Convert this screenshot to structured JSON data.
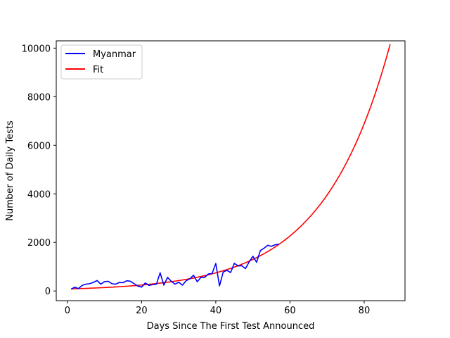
{
  "chart_data": {
    "type": "line",
    "title": "",
    "xlabel": "Days Since The First Test Announced",
    "ylabel": "Number of Daily Tests",
    "xlim": [
      -3,
      91
    ],
    "ylim": [
      -400,
      10300
    ],
    "xticks": [
      0,
      20,
      40,
      60,
      80
    ],
    "yticks": [
      0,
      2000,
      4000,
      6000,
      8000,
      10000
    ],
    "grid": false,
    "legend_position": "top-left",
    "series": [
      {
        "name": "Myanmar",
        "color": "#0000ff",
        "x": [
          1,
          2,
          3,
          4,
          5,
          6,
          7,
          8,
          9,
          10,
          11,
          12,
          13,
          14,
          15,
          16,
          17,
          18,
          19,
          20,
          21,
          22,
          23,
          24,
          25,
          26,
          27,
          28,
          29,
          30,
          31,
          32,
          33,
          34,
          35,
          36,
          37,
          38,
          39,
          40,
          41,
          42,
          43,
          44,
          45,
          46,
          47,
          48,
          49,
          50,
          51,
          52,
          53,
          54,
          55,
          56,
          57
        ],
        "y": [
          80,
          150,
          100,
          230,
          280,
          300,
          350,
          430,
          280,
          380,
          400,
          300,
          280,
          350,
          340,
          420,
          400,
          300,
          200,
          160,
          330,
          230,
          260,
          280,
          750,
          240,
          560,
          400,
          280,
          360,
          240,
          420,
          500,
          650,
          380,
          560,
          560,
          700,
          720,
          1130,
          210,
          780,
          850,
          760,
          1140,
          1030,
          1040,
          920,
          1200,
          1430,
          1180,
          1660,
          1760,
          1880,
          1840,
          1900,
          1930
        ]
      },
      {
        "name": "Fit",
        "color": "#ff0000",
        "model": "exponential",
        "x_range": [
          1,
          87
        ],
        "a": 80.6,
        "b": 0.0556
      }
    ]
  }
}
